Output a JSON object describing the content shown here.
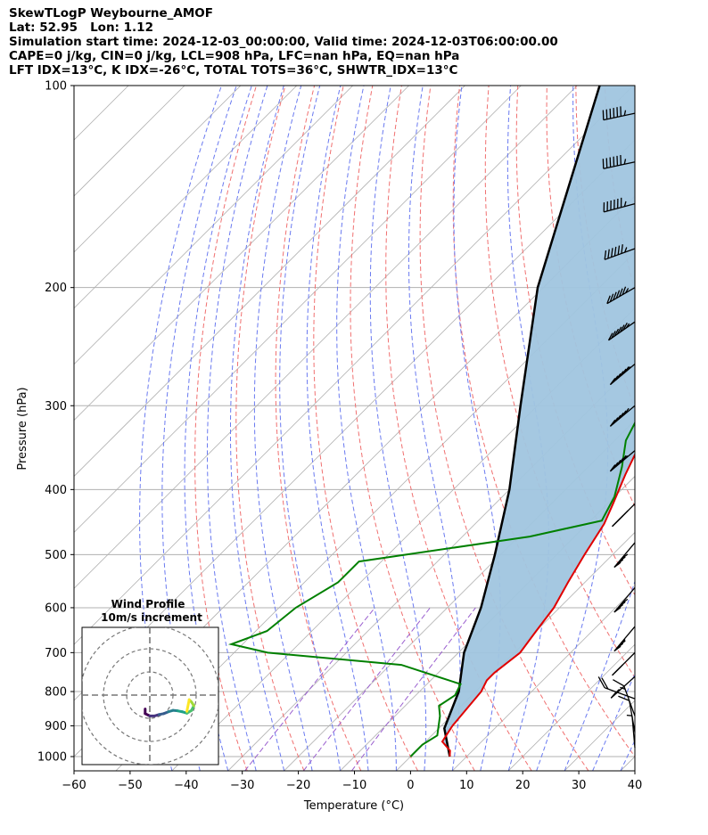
{
  "header": {
    "line1": "SkewTLogP Weybourne_AMOF",
    "line2": "Lat: 52.95   Lon: 1.12",
    "line3": "Simulation start time: 2024-12-03_00:00:00, Valid time: 2024-12-03T06:00:00.00",
    "line4": "CAPE=0 j/kg, CIN=0 j/kg, LCL=908 hPa, LFC=nan hPa, EQ=nan hPa",
    "line5": "LFT IDX=13°C, K IDX=-26°C, TOTAL TOTS=36°C, SHWTR_IDX=13°C"
  },
  "chart_data": {
    "type": "line",
    "subtype": "skew-T log-P",
    "xlabel": "Temperature (°C)",
    "ylabel": "Pressure (hPa)",
    "xlim": [
      -60,
      40
    ],
    "ylim": [
      1050,
      100
    ],
    "yscale": "log",
    "xticks": [
      -60,
      -50,
      -40,
      -30,
      -20,
      -10,
      0,
      10,
      20,
      30,
      40
    ],
    "yticks": [
      100,
      200,
      300,
      400,
      500,
      600,
      700,
      800,
      900,
      1000
    ],
    "grid": true,
    "colors": {
      "temperature": "#e00000",
      "dewpoint": "#008000",
      "parcel": "#000000",
      "cin_fill": "#a0c5df",
      "dry_adiabats": "#f07070",
      "moist_adiabats": "#6a7af0",
      "mixing_ratio": "#9a5fcf",
      "isotherms": "#b0b0b0"
    },
    "series": [
      {
        "role": "temperature",
        "points": [
          [
            7,
            1000
          ],
          [
            6,
            980
          ],
          [
            3,
            950
          ],
          [
            2,
            900
          ],
          [
            1.5,
            850
          ],
          [
            1,
            800
          ],
          [
            0,
            770
          ],
          [
            0,
            750
          ],
          [
            1,
            700
          ],
          [
            0,
            650
          ],
          [
            -1,
            600
          ],
          [
            -3,
            550
          ],
          [
            -5,
            500
          ],
          [
            -7,
            450
          ],
          [
            -9,
            420
          ],
          [
            -12,
            380
          ],
          [
            -15,
            340
          ],
          [
            -17,
            315
          ],
          [
            -16,
            300
          ],
          [
            -15,
            280
          ],
          [
            -15,
            265
          ],
          [
            -13,
            245
          ],
          [
            -10,
            215
          ],
          [
            -7,
            190
          ],
          [
            -4,
            165
          ],
          [
            -1,
            143
          ],
          [
            2,
            125
          ],
          [
            4,
            112
          ],
          [
            5,
            103
          ],
          [
            5,
            100
          ]
        ]
      },
      {
        "role": "dewpoint",
        "points": [
          [
            0,
            1000
          ],
          [
            0,
            960
          ],
          [
            1,
            930
          ],
          [
            -2,
            870
          ],
          [
            -4,
            840
          ],
          [
            -3,
            810
          ],
          [
            -4,
            780
          ],
          [
            -18,
            730
          ],
          [
            -44,
            700
          ],
          [
            -52,
            680
          ],
          [
            -48,
            650
          ],
          [
            -47,
            600
          ],
          [
            -44,
            550
          ],
          [
            -44,
            512
          ],
          [
            -18,
            470
          ],
          [
            -8,
            445
          ],
          [
            -10,
            410
          ],
          [
            -14,
            370
          ],
          [
            -18,
            338
          ],
          [
            -21,
            300
          ],
          [
            -22,
            280
          ],
          [
            -22,
            260
          ],
          [
            -25,
            225
          ],
          [
            -25,
            205
          ],
          [
            -27,
            183
          ],
          [
            -28,
            168
          ],
          [
            -32,
            150
          ],
          [
            -30,
            130
          ],
          [
            -26,
            112
          ],
          [
            -24,
            100
          ]
        ]
      },
      {
        "role": "parcel",
        "points": [
          [
            7,
            1000
          ],
          [
            1,
            908
          ],
          [
            -3,
            800
          ],
          [
            -9,
            700
          ],
          [
            -14,
            600
          ],
          [
            -21,
            500
          ],
          [
            -30,
            400
          ],
          [
            -43,
            300
          ],
          [
            -61,
            200
          ],
          [
            -86,
            100
          ]
        ]
      }
    ],
    "wind_barbs": {
      "units": "kt",
      "levels": [
        {
          "p": 110,
          "speed": 110,
          "dir": 282
        },
        {
          "p": 130,
          "speed": 110,
          "dir": 282
        },
        {
          "p": 150,
          "speed": 105,
          "dir": 285
        },
        {
          "p": 175,
          "speed": 100,
          "dir": 290
        },
        {
          "p": 200,
          "speed": 80,
          "dir": 300
        },
        {
          "p": 225,
          "speed": 75,
          "dir": 305
        },
        {
          "p": 260,
          "speed": 70,
          "dir": 310
        },
        {
          "p": 300,
          "speed": 60,
          "dir": 310
        },
        {
          "p": 350,
          "speed": 55,
          "dir": 310
        },
        {
          "p": 420,
          "speed": 50,
          "dir": 315
        },
        {
          "p": 480,
          "speed": 40,
          "dir": 320
        },
        {
          "p": 560,
          "speed": 40,
          "dir": 320
        },
        {
          "p": 640,
          "speed": 35,
          "dir": 320
        },
        {
          "p": 700,
          "speed": 30,
          "dir": 315
        },
        {
          "p": 760,
          "speed": 25,
          "dir": 312
        },
        {
          "p": 820,
          "speed": 20,
          "dir": 250
        },
        {
          "p": 870,
          "speed": 15,
          "dir": 200
        },
        {
          "p": 920,
          "speed": 10,
          "dir": 190
        },
        {
          "p": 970,
          "speed": 8,
          "dir": 185
        }
      ]
    },
    "inset": {
      "title": "Wind Profile",
      "subtitle": "10m/s increment",
      "rings": [
        10,
        20,
        30
      ],
      "hodograph": [
        [
          -1,
          -3
        ],
        [
          -1,
          -4
        ],
        [
          0,
          -4.5
        ],
        [
          1,
          -4.5
        ],
        [
          2,
          -4.2
        ],
        [
          3,
          -4
        ],
        [
          4,
          -3.6
        ],
        [
          5,
          -3.3
        ],
        [
          6,
          -3.4
        ],
        [
          7,
          -3.6
        ],
        [
          8,
          -3.9
        ],
        [
          9,
          -3.3
        ],
        [
          9.5,
          -2.3
        ],
        [
          9,
          -1.5
        ],
        [
          8.5,
          -1
        ],
        [
          8,
          -3.5
        ]
      ]
    }
  }
}
